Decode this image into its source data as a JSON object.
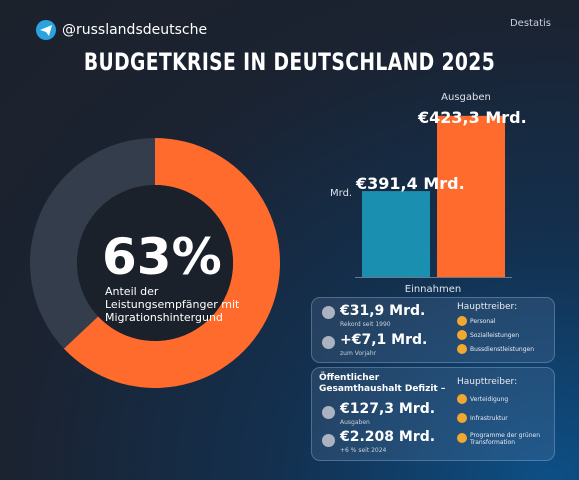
{
  "header": {
    "handle": "@russlandsdeutsche",
    "source": "Destatis"
  },
  "title": "BUDGETKRISE IN DEUTSCHLAND 2025",
  "chart_data": [
    {
      "type": "donut",
      "values": [
        63,
        37
      ],
      "colors": [
        "#ff6b2c",
        "#343d4c"
      ],
      "center_label": "63%",
      "annotation": "Anteil der Leistungsempfänger mit Migrationshintergund"
    },
    {
      "type": "bar",
      "categories": [
        "Einnahmen",
        "Ausgaben"
      ],
      "values": [
        391.4,
        423.3
      ],
      "value_labels": [
        "€391,4 Mrd.",
        "€423,3 Mrd."
      ],
      "colors": [
        "#1a8fb0",
        "#ff6b2c"
      ],
      "unit_label": "Mrd.",
      "ylim": [
        355,
        430
      ]
    }
  ],
  "boxes": [
    {
      "items": [
        {
          "value": "€31,9 Mrd.",
          "note": "Rekord seit 1990"
        },
        {
          "value": "+€7,1 Mrd.",
          "note": "zum Vorjahr"
        }
      ],
      "drivers_title": "Haupttreiber:",
      "drivers": [
        "Personal",
        "Sozialleistungen",
        "Bussdienstleistungen"
      ]
    },
    {
      "title": "Öffentlicher Gesamthaushalt Defizit –",
      "items": [
        {
          "value": "€127,3 Mrd.",
          "note": "Ausgaben"
        },
        {
          "value": "€2.208 Mrd.",
          "note": "+6 % seit 2024"
        }
      ],
      "drivers_title": "Haupttreiber:",
      "drivers": [
        "Verteidigung",
        "Infrastruktur",
        "Programme der grünen Transformation"
      ]
    }
  ]
}
